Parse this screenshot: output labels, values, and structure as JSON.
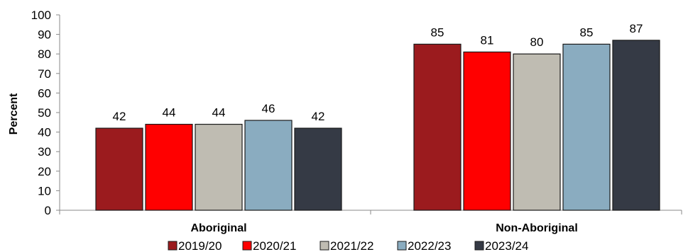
{
  "chart_data": {
    "type": "bar",
    "categories": [
      "Aboriginal",
      "Non-Aboriginal"
    ],
    "ylabel": "Percent",
    "ylim": [
      0,
      100
    ],
    "yticks": [
      0,
      10,
      20,
      30,
      40,
      50,
      60,
      70,
      80,
      90,
      100
    ],
    "grid": false,
    "legend_position": "bottom",
    "series": [
      {
        "name": "2019/20",
        "color": "#9b1b1e",
        "values": [
          42,
          85
        ]
      },
      {
        "name": "2020/21",
        "color": "#ff0000",
        "values": [
          44,
          81
        ]
      },
      {
        "name": "2021/22",
        "color": "#bfbcb2",
        "values": [
          44,
          80
        ]
      },
      {
        "name": "2022/23",
        "color": "#8aacc0",
        "values": [
          46,
          85
        ]
      },
      {
        "name": "2023/24",
        "color": "#353a45",
        "values": [
          42,
          87
        ]
      }
    ]
  }
}
